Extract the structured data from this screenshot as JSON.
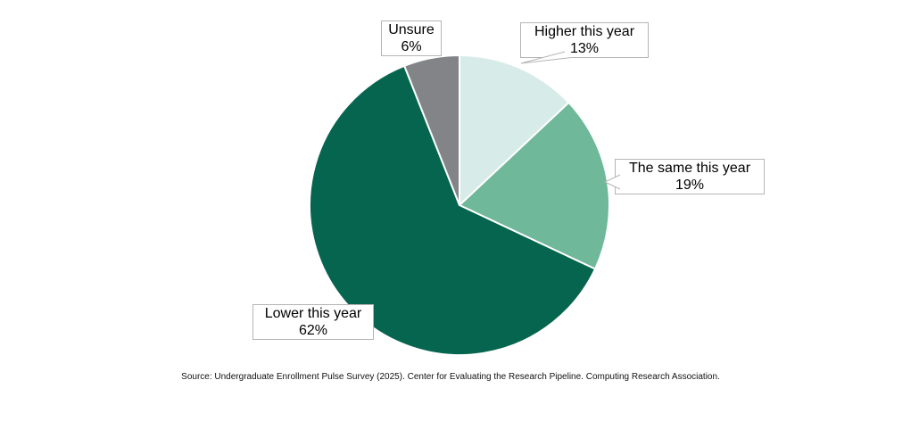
{
  "page": {
    "background_color": "#ffffff"
  },
  "chart_data": {
    "type": "pie",
    "title": "",
    "unit": "percent",
    "start_angle": "top",
    "direction": "clockwise",
    "slice_gap_color": "#ffffff",
    "legend_position": "callout-labels",
    "categories": [
      "Higher this year",
      "The same this year",
      "Lower this year",
      "Unsure"
    ],
    "values": [
      13,
      19,
      62,
      6
    ],
    "slices": [
      {
        "label": "Higher this year",
        "value": 13,
        "pct_label": "13%",
        "color": "#d7ebe8"
      },
      {
        "label": "The same this year",
        "value": 19,
        "pct_label": "19%",
        "color": "#6fb89a"
      },
      {
        "label": "Lower this year",
        "value": 62,
        "pct_label": "62%",
        "color": "#06654e"
      },
      {
        "label": "Unsure",
        "value": 6,
        "pct_label": "6%",
        "color": "#828487"
      }
    ],
    "source_note": "Source: Undergraduate Enrollment Pulse Survey (2025). Center for Evaluating the Research Pipeline. Computing Research Association."
  }
}
